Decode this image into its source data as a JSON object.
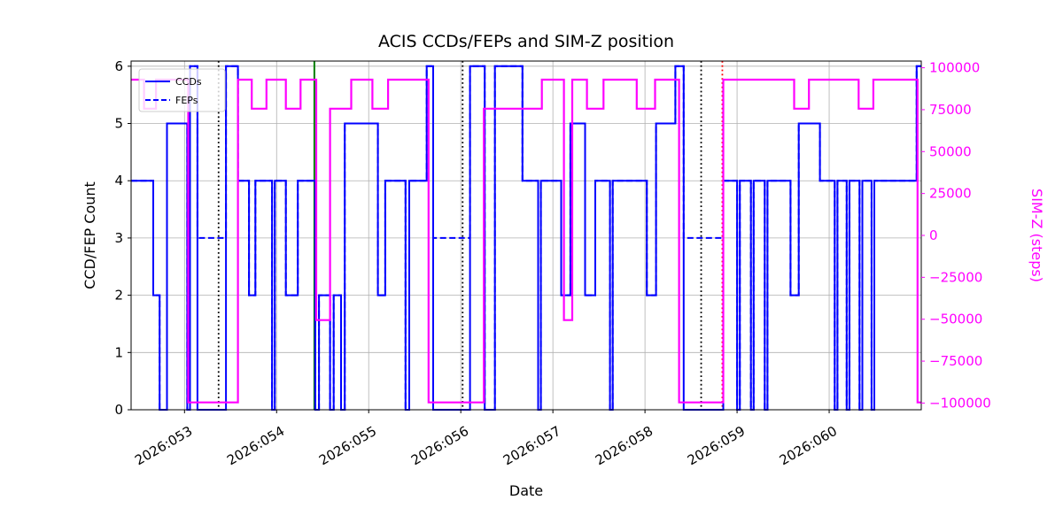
{
  "colors": {
    "ccd_fep": "#0000ff",
    "simz": "#ff00ff",
    "grid": "#b0b0b0",
    "spine": "#000000",
    "green_event": "#008000",
    "red_event": "#ff0000",
    "black_event": "#000000"
  },
  "chart_data": {
    "type": "line",
    "title": "ACIS CCDs/FEPs and SIM-Z position",
    "xlabel": "Date",
    "ylabel_left": "CCD/FEP Count",
    "ylabel_right": "SIM-Z (steps)",
    "grid": true,
    "legend_position": "upper left",
    "x_range": [
      52.42,
      61.0
    ],
    "ylim_left": [
      0,
      6
    ],
    "ylim_right": [
      -100000,
      100000
    ],
    "x_ticks": [
      {
        "value": 53,
        "label": "2026:053"
      },
      {
        "value": 54,
        "label": "2026:054"
      },
      {
        "value": 55,
        "label": "2026:055"
      },
      {
        "value": 56,
        "label": "2026:056"
      },
      {
        "value": 57,
        "label": "2026:057"
      },
      {
        "value": 58,
        "label": "2026:058"
      },
      {
        "value": 59,
        "label": "2026:059"
      },
      {
        "value": 60,
        "label": "2026:060"
      }
    ],
    "left_ticks": [
      {
        "value": 0,
        "label": "0"
      },
      {
        "value": 1,
        "label": "1"
      },
      {
        "value": 2,
        "label": "2"
      },
      {
        "value": 3,
        "label": "3"
      },
      {
        "value": 4,
        "label": "4"
      },
      {
        "value": 5,
        "label": "5"
      },
      {
        "value": 6,
        "label": "6"
      }
    ],
    "right_ticks": [
      {
        "value": 100000,
        "label": "100000"
      },
      {
        "value": 75000,
        "label": "75000"
      },
      {
        "value": 50000,
        "label": "50000"
      },
      {
        "value": 25000,
        "label": "25000"
      },
      {
        "value": 0,
        "label": "0"
      },
      {
        "value": -25000,
        "label": "−25000"
      },
      {
        "value": -50000,
        "label": "−50000"
      },
      {
        "value": -75000,
        "label": "−75000"
      },
      {
        "value": -100000,
        "label": "−100000"
      }
    ],
    "legend": [
      {
        "label": "CCDs",
        "dash": "solid"
      },
      {
        "label": "FEPs",
        "dash": "dashed"
      }
    ],
    "series": [
      {
        "name": "FEPs",
        "axis": "left",
        "color": "#0000ff",
        "style": "dashed",
        "steps": [
          [
            52.42,
            4
          ],
          [
            52.66,
            2
          ],
          [
            52.73,
            0
          ],
          [
            52.81,
            5
          ],
          [
            53.03,
            0
          ],
          [
            53.06,
            6
          ],
          [
            53.14,
            3
          ],
          [
            53.45,
            6
          ],
          [
            53.58,
            4
          ],
          [
            53.7,
            2
          ],
          [
            53.77,
            4
          ],
          [
            53.95,
            0
          ],
          [
            53.98,
            4
          ],
          [
            54.1,
            2
          ],
          [
            54.23,
            4
          ],
          [
            54.42,
            0
          ],
          [
            54.46,
            2
          ],
          [
            54.58,
            0
          ],
          [
            54.62,
            2
          ],
          [
            54.7,
            0
          ],
          [
            54.74,
            5
          ],
          [
            55.1,
            2
          ],
          [
            55.18,
            4
          ],
          [
            55.4,
            0
          ],
          [
            55.44,
            4
          ],
          [
            55.63,
            6
          ],
          [
            55.7,
            3
          ],
          [
            56.1,
            6
          ],
          [
            56.26,
            0
          ],
          [
            56.37,
            6
          ],
          [
            56.67,
            4
          ],
          [
            56.84,
            0
          ],
          [
            56.87,
            4
          ],
          [
            57.09,
            2
          ],
          [
            57.19,
            5
          ],
          [
            57.35,
            2
          ],
          [
            57.46,
            4
          ],
          [
            57.62,
            0
          ],
          [
            57.65,
            4
          ],
          [
            58.02,
            2
          ],
          [
            58.12,
            5
          ],
          [
            58.33,
            6
          ],
          [
            58.42,
            3
          ],
          [
            58.85,
            4
          ],
          [
            59.0,
            0
          ],
          [
            59.03,
            4
          ],
          [
            59.15,
            0
          ],
          [
            59.18,
            4
          ],
          [
            59.3,
            0
          ],
          [
            59.33,
            4
          ],
          [
            59.58,
            2
          ],
          [
            59.67,
            5
          ],
          [
            59.9,
            4
          ],
          [
            60.06,
            0
          ],
          [
            60.09,
            4
          ],
          [
            60.19,
            0
          ],
          [
            60.22,
            4
          ],
          [
            60.33,
            0
          ],
          [
            60.36,
            4
          ],
          [
            60.46,
            0
          ],
          [
            60.49,
            4
          ],
          [
            60.95,
            6
          ],
          [
            61.0,
            6
          ]
        ]
      },
      {
        "name": "CCDs",
        "axis": "left",
        "color": "#0000ff",
        "style": "solid",
        "steps": [
          [
            52.42,
            4
          ],
          [
            52.66,
            2
          ],
          [
            52.73,
            0
          ],
          [
            52.81,
            5
          ],
          [
            53.03,
            0
          ],
          [
            53.06,
            6
          ],
          [
            53.14,
            0
          ],
          [
            53.45,
            6
          ],
          [
            53.58,
            4
          ],
          [
            53.7,
            2
          ],
          [
            53.77,
            4
          ],
          [
            53.95,
            0
          ],
          [
            53.98,
            4
          ],
          [
            54.1,
            2
          ],
          [
            54.23,
            4
          ],
          [
            54.42,
            0
          ],
          [
            54.46,
            2
          ],
          [
            54.58,
            0
          ],
          [
            54.62,
            2
          ],
          [
            54.7,
            0
          ],
          [
            54.74,
            5
          ],
          [
            55.1,
            2
          ],
          [
            55.18,
            4
          ],
          [
            55.4,
            0
          ],
          [
            55.44,
            4
          ],
          [
            55.63,
            6
          ],
          [
            55.7,
            0
          ],
          [
            56.1,
            6
          ],
          [
            56.26,
            0
          ],
          [
            56.37,
            6
          ],
          [
            56.67,
            4
          ],
          [
            56.84,
            0
          ],
          [
            56.87,
            4
          ],
          [
            57.09,
            2
          ],
          [
            57.19,
            5
          ],
          [
            57.35,
            2
          ],
          [
            57.46,
            4
          ],
          [
            57.62,
            0
          ],
          [
            57.65,
            4
          ],
          [
            58.02,
            2
          ],
          [
            58.12,
            5
          ],
          [
            58.33,
            6
          ],
          [
            58.42,
            0
          ],
          [
            58.85,
            4
          ],
          [
            59.0,
            0
          ],
          [
            59.03,
            4
          ],
          [
            59.15,
            0
          ],
          [
            59.18,
            4
          ],
          [
            59.3,
            0
          ],
          [
            59.33,
            4
          ],
          [
            59.58,
            2
          ],
          [
            59.67,
            5
          ],
          [
            59.9,
            4
          ],
          [
            60.06,
            0
          ],
          [
            60.09,
            4
          ],
          [
            60.19,
            0
          ],
          [
            60.22,
            4
          ],
          [
            60.33,
            0
          ],
          [
            60.36,
            4
          ],
          [
            60.46,
            0
          ],
          [
            60.49,
            4
          ],
          [
            60.95,
            6
          ],
          [
            61.0,
            6
          ]
        ]
      },
      {
        "name": "SIM-Z",
        "axis": "right",
        "color": "#ff00ff",
        "style": "solid",
        "steps": [
          [
            52.42,
            92904
          ],
          [
            52.56,
            75624
          ],
          [
            52.69,
            92904
          ],
          [
            53.04,
            -99616
          ],
          [
            53.58,
            92904
          ],
          [
            53.73,
            75624
          ],
          [
            53.89,
            92904
          ],
          [
            54.1,
            75624
          ],
          [
            54.26,
            92904
          ],
          [
            54.43,
            -50505
          ],
          [
            54.58,
            75624
          ],
          [
            54.81,
            92904
          ],
          [
            55.04,
            75624
          ],
          [
            55.21,
            92904
          ],
          [
            55.65,
            -99616
          ],
          [
            56.25,
            75624
          ],
          [
            56.88,
            92904
          ],
          [
            57.12,
            -50505
          ],
          [
            57.21,
            92904
          ],
          [
            57.37,
            75624
          ],
          [
            57.55,
            92904
          ],
          [
            57.91,
            75624
          ],
          [
            58.11,
            92904
          ],
          [
            58.37,
            -99616
          ],
          [
            58.85,
            92904
          ],
          [
            59.62,
            75624
          ],
          [
            59.78,
            92904
          ],
          [
            60.32,
            75624
          ],
          [
            60.48,
            92904
          ],
          [
            60.96,
            -99616
          ],
          [
            61.0,
            -99616
          ]
        ]
      }
    ],
    "vlines": [
      {
        "x": 53.37,
        "color": "#000000",
        "style": "dotted",
        "name": "vline-dotted-1"
      },
      {
        "x": 54.41,
        "color": "#008000",
        "style": "solid",
        "name": "vline-green"
      },
      {
        "x": 56.02,
        "color": "#000000",
        "style": "dotted",
        "name": "vline-dotted-2"
      },
      {
        "x": 58.61,
        "color": "#000000",
        "style": "dotted",
        "name": "vline-dotted-3"
      },
      {
        "x": 58.84,
        "color": "#ff0000",
        "style": "dotted",
        "name": "vline-red"
      }
    ]
  }
}
